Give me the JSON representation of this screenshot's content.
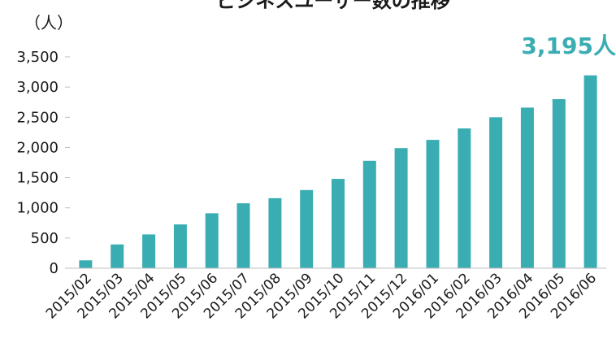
{
  "chart_data": {
    "type": "bar",
    "title": "ビジネスユーザー数の推移",
    "unit_label": "（人）",
    "callout": "3,195人",
    "categories": [
      "2015/02",
      "2015/03",
      "2015/04",
      "2015/05",
      "2015/06",
      "2015/07",
      "2015/08",
      "2015/09",
      "2015/10",
      "2015/11",
      "2015/12",
      "2016/01",
      "2016/02",
      "2016/03",
      "2016/04",
      "2016/05",
      "2016/06"
    ],
    "values": [
      130,
      395,
      560,
      725,
      910,
      1075,
      1160,
      1295,
      1480,
      1780,
      1990,
      2125,
      2315,
      2500,
      2660,
      2800,
      3195
    ],
    "yticks": [
      "0",
      "500",
      "1,000",
      "1,500",
      "2,000",
      "2,500",
      "3,000",
      "3,500"
    ],
    "ylim": [
      0,
      3500
    ],
    "grid": false,
    "colors": {
      "bar": "#3AADB3",
      "callout": "#3AADB3",
      "axis": "#bfbfbf",
      "text": "#1a1a1a"
    }
  }
}
